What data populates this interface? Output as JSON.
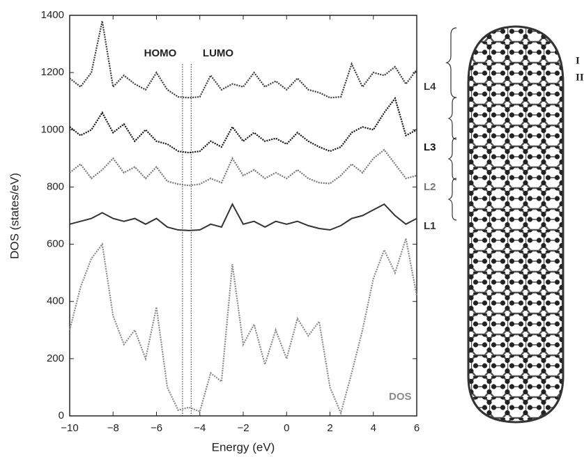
{
  "chart_data": {
    "type": "line",
    "x_label": "Energy (eV)",
    "y_label": "DOS (states/eV)",
    "xlim": [
      -10,
      6
    ],
    "xticks": [
      {
        "value": -10,
        "label": "−10"
      },
      {
        "value": -8,
        "label": "−8"
      },
      {
        "value": -6,
        "label": "−6"
      },
      {
        "value": -4,
        "label": "−4"
      },
      {
        "value": -2,
        "label": "−2"
      },
      0,
      2,
      4,
      6
    ],
    "ylim": [
      0,
      1400
    ],
    "yticks": [
      0,
      200,
      400,
      600,
      800,
      1000,
      1200,
      1400
    ],
    "annotations": [
      "HOMO",
      "LUMO"
    ],
    "reference_lines_x": [
      -4.8,
      -4.4
    ],
    "x": [
      -10,
      -9.5,
      -9,
      -8.5,
      -8,
      -7.5,
      -7,
      -6.5,
      -6,
      -5.5,
      -5,
      -4.5,
      -4,
      -3.5,
      -3,
      -2.5,
      -2,
      -1.5,
      -1,
      -0.5,
      0,
      0.5,
      1,
      1.5,
      2,
      2.5,
      3,
      3.5,
      4,
      4.5,
      5,
      5.5,
      6
    ],
    "series": [
      {
        "name": "L4",
        "color": "#3a3a3a",
        "style": "dotted",
        "values": [
          1180,
          1150,
          1200,
          1380,
          1150,
          1190,
          1160,
          1140,
          1200,
          1140,
          1115,
          1112,
          1115,
          1190,
          1140,
          1160,
          1150,
          1200,
          1150,
          1170,
          1140,
          1180,
          1140,
          1130,
          1112,
          1115,
          1230,
          1150,
          1200,
          1190,
          1220,
          1160,
          1210
        ]
      },
      {
        "name": "L3",
        "color": "#111111",
        "style": "dotted",
        "values": [
          1010,
          980,
          1000,
          1060,
          990,
          1020,
          960,
          1000,
          960,
          950,
          925,
          920,
          925,
          960,
          940,
          1010,
          960,
          990,
          960,
          970,
          950,
          990,
          960,
          940,
          925,
          940,
          990,
          1010,
          1000,
          1060,
          1110,
          980,
          1000
        ]
      },
      {
        "name": "L2",
        "color": "#777777",
        "style": "dotted",
        "values": [
          850,
          880,
          830,
          860,
          900,
          850,
          870,
          830,
          870,
          820,
          810,
          805,
          810,
          830,
          815,
          900,
          840,
          860,
          830,
          850,
          830,
          860,
          830,
          815,
          812,
          840,
          880,
          850,
          900,
          930,
          880,
          830,
          840
        ]
      },
      {
        "name": "L1",
        "color": "#333333",
        "style": "solid",
        "values": [
          670,
          680,
          690,
          710,
          690,
          680,
          690,
          670,
          690,
          660,
          650,
          648,
          650,
          670,
          660,
          740,
          670,
          680,
          660,
          680,
          670,
          680,
          665,
          655,
          650,
          665,
          690,
          700,
          720,
          740,
          700,
          670,
          690
        ]
      },
      {
        "name": "DOS",
        "color": "#8a8a8a",
        "style": "dotted",
        "values": [
          300,
          450,
          550,
          600,
          350,
          250,
          300,
          200,
          380,
          100,
          20,
          30,
          15,
          150,
          120,
          530,
          250,
          320,
          180,
          300,
          200,
          340,
          280,
          330,
          100,
          10,
          150,
          300,
          480,
          580,
          500,
          620,
          420
        ]
      }
    ]
  },
  "structure_labels": [
    "I",
    "II"
  ]
}
